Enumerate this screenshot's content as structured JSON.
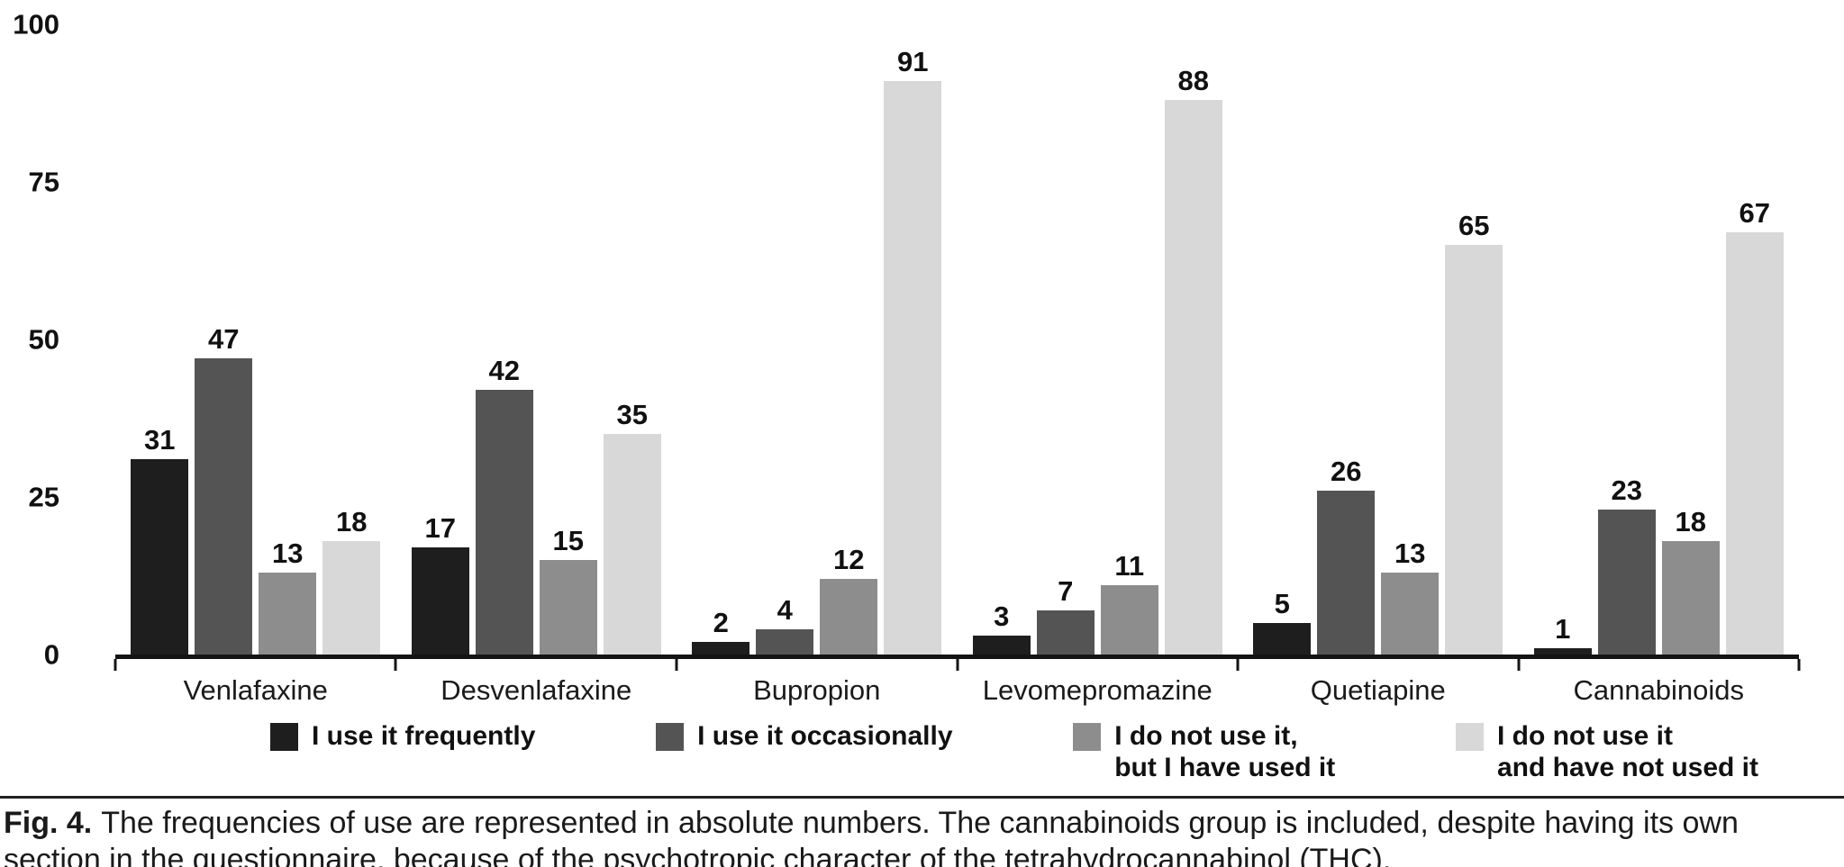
{
  "chart_data": {
    "type": "bar",
    "title": "",
    "xlabel": "",
    "ylabel": "",
    "ylim": [
      0,
      100
    ],
    "yticks": [
      0,
      25,
      50,
      75,
      100
    ],
    "grid": false,
    "legend_position": "bottom",
    "categories": [
      "Venlafaxine",
      "Desvenlafaxine",
      "Bupropion",
      "Levomepromazine",
      "Quetiapine",
      "Cannabinoids"
    ],
    "series": [
      {
        "name": "I use it frequently",
        "color": "#1e1e1e",
        "values": [
          31,
          17,
          2,
          3,
          5,
          1
        ]
      },
      {
        "name": "I use it occasionally",
        "color": "#545454",
        "values": [
          47,
          42,
          4,
          7,
          26,
          23
        ]
      },
      {
        "name": "I do not use it,\nbut I have used it",
        "color": "#8d8d8d",
        "values": [
          13,
          15,
          12,
          11,
          13,
          18
        ]
      },
      {
        "name": "I do not use it\nand have not used it",
        "color": "#d8d8d8",
        "values": [
          18,
          35,
          91,
          88,
          65,
          67
        ]
      }
    ]
  },
  "caption": {
    "label": "Fig. 4.",
    "text": "The frequencies of use are represented in absolute numbers. The cannabinoids group is included, despite having its own section in the questionnaire, because of the psychotropic character of the tetrahydrocannabinol (THC)."
  }
}
